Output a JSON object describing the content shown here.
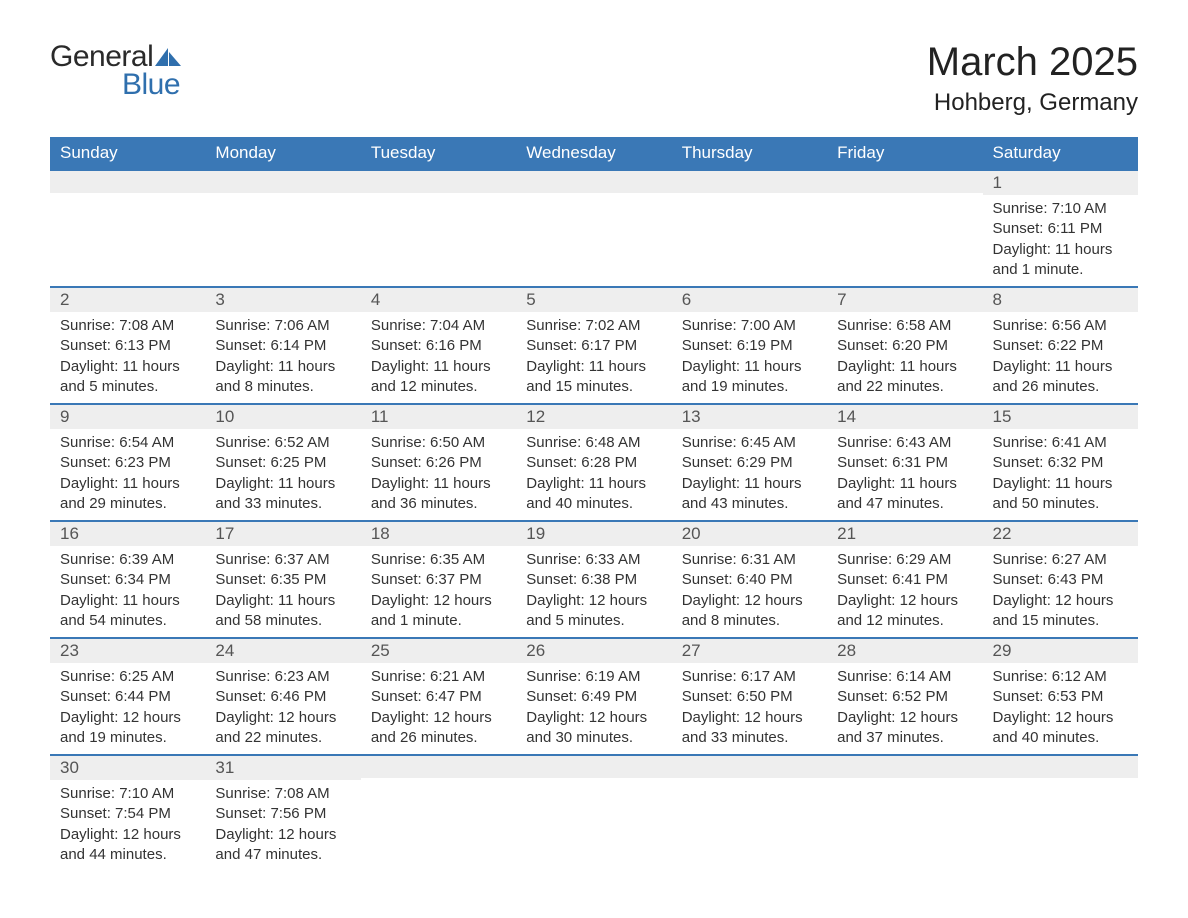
{
  "brand": {
    "word1": "General",
    "word2": "Blue",
    "accent_color": "#2f6fad"
  },
  "title": "March 2025",
  "location": "Hohberg, Germany",
  "colors": {
    "header_bg": "#3a78b6",
    "header_text": "#ffffff",
    "row_divider": "#3a78b6",
    "daynum_bg": "#eeeeee",
    "body_bg": "#ffffff",
    "text": "#333333"
  },
  "fonts": {
    "title_size_pt": 30,
    "location_size_pt": 18,
    "dow_size_pt": 13,
    "daynum_size_pt": 13,
    "body_size_pt": 11
  },
  "days_of_week": [
    "Sunday",
    "Monday",
    "Tuesday",
    "Wednesday",
    "Thursday",
    "Friday",
    "Saturday"
  ],
  "weeks": [
    [
      {
        "num": "",
        "sunrise": "",
        "sunset": "",
        "daylight": ""
      },
      {
        "num": "",
        "sunrise": "",
        "sunset": "",
        "daylight": ""
      },
      {
        "num": "",
        "sunrise": "",
        "sunset": "",
        "daylight": ""
      },
      {
        "num": "",
        "sunrise": "",
        "sunset": "",
        "daylight": ""
      },
      {
        "num": "",
        "sunrise": "",
        "sunset": "",
        "daylight": ""
      },
      {
        "num": "",
        "sunrise": "",
        "sunset": "",
        "daylight": ""
      },
      {
        "num": "1",
        "sunrise": "Sunrise: 7:10 AM",
        "sunset": "Sunset: 6:11 PM",
        "daylight": "Daylight: 11 hours and 1 minute."
      }
    ],
    [
      {
        "num": "2",
        "sunrise": "Sunrise: 7:08 AM",
        "sunset": "Sunset: 6:13 PM",
        "daylight": "Daylight: 11 hours and 5 minutes."
      },
      {
        "num": "3",
        "sunrise": "Sunrise: 7:06 AM",
        "sunset": "Sunset: 6:14 PM",
        "daylight": "Daylight: 11 hours and 8 minutes."
      },
      {
        "num": "4",
        "sunrise": "Sunrise: 7:04 AM",
        "sunset": "Sunset: 6:16 PM",
        "daylight": "Daylight: 11 hours and 12 minutes."
      },
      {
        "num": "5",
        "sunrise": "Sunrise: 7:02 AM",
        "sunset": "Sunset: 6:17 PM",
        "daylight": "Daylight: 11 hours and 15 minutes."
      },
      {
        "num": "6",
        "sunrise": "Sunrise: 7:00 AM",
        "sunset": "Sunset: 6:19 PM",
        "daylight": "Daylight: 11 hours and 19 minutes."
      },
      {
        "num": "7",
        "sunrise": "Sunrise: 6:58 AM",
        "sunset": "Sunset: 6:20 PM",
        "daylight": "Daylight: 11 hours and 22 minutes."
      },
      {
        "num": "8",
        "sunrise": "Sunrise: 6:56 AM",
        "sunset": "Sunset: 6:22 PM",
        "daylight": "Daylight: 11 hours and 26 minutes."
      }
    ],
    [
      {
        "num": "9",
        "sunrise": "Sunrise: 6:54 AM",
        "sunset": "Sunset: 6:23 PM",
        "daylight": "Daylight: 11 hours and 29 minutes."
      },
      {
        "num": "10",
        "sunrise": "Sunrise: 6:52 AM",
        "sunset": "Sunset: 6:25 PM",
        "daylight": "Daylight: 11 hours and 33 minutes."
      },
      {
        "num": "11",
        "sunrise": "Sunrise: 6:50 AM",
        "sunset": "Sunset: 6:26 PM",
        "daylight": "Daylight: 11 hours and 36 minutes."
      },
      {
        "num": "12",
        "sunrise": "Sunrise: 6:48 AM",
        "sunset": "Sunset: 6:28 PM",
        "daylight": "Daylight: 11 hours and 40 minutes."
      },
      {
        "num": "13",
        "sunrise": "Sunrise: 6:45 AM",
        "sunset": "Sunset: 6:29 PM",
        "daylight": "Daylight: 11 hours and 43 minutes."
      },
      {
        "num": "14",
        "sunrise": "Sunrise: 6:43 AM",
        "sunset": "Sunset: 6:31 PM",
        "daylight": "Daylight: 11 hours and 47 minutes."
      },
      {
        "num": "15",
        "sunrise": "Sunrise: 6:41 AM",
        "sunset": "Sunset: 6:32 PM",
        "daylight": "Daylight: 11 hours and 50 minutes."
      }
    ],
    [
      {
        "num": "16",
        "sunrise": "Sunrise: 6:39 AM",
        "sunset": "Sunset: 6:34 PM",
        "daylight": "Daylight: 11 hours and 54 minutes."
      },
      {
        "num": "17",
        "sunrise": "Sunrise: 6:37 AM",
        "sunset": "Sunset: 6:35 PM",
        "daylight": "Daylight: 11 hours and 58 minutes."
      },
      {
        "num": "18",
        "sunrise": "Sunrise: 6:35 AM",
        "sunset": "Sunset: 6:37 PM",
        "daylight": "Daylight: 12 hours and 1 minute."
      },
      {
        "num": "19",
        "sunrise": "Sunrise: 6:33 AM",
        "sunset": "Sunset: 6:38 PM",
        "daylight": "Daylight: 12 hours and 5 minutes."
      },
      {
        "num": "20",
        "sunrise": "Sunrise: 6:31 AM",
        "sunset": "Sunset: 6:40 PM",
        "daylight": "Daylight: 12 hours and 8 minutes."
      },
      {
        "num": "21",
        "sunrise": "Sunrise: 6:29 AM",
        "sunset": "Sunset: 6:41 PM",
        "daylight": "Daylight: 12 hours and 12 minutes."
      },
      {
        "num": "22",
        "sunrise": "Sunrise: 6:27 AM",
        "sunset": "Sunset: 6:43 PM",
        "daylight": "Daylight: 12 hours and 15 minutes."
      }
    ],
    [
      {
        "num": "23",
        "sunrise": "Sunrise: 6:25 AM",
        "sunset": "Sunset: 6:44 PM",
        "daylight": "Daylight: 12 hours and 19 minutes."
      },
      {
        "num": "24",
        "sunrise": "Sunrise: 6:23 AM",
        "sunset": "Sunset: 6:46 PM",
        "daylight": "Daylight: 12 hours and 22 minutes."
      },
      {
        "num": "25",
        "sunrise": "Sunrise: 6:21 AM",
        "sunset": "Sunset: 6:47 PM",
        "daylight": "Daylight: 12 hours and 26 minutes."
      },
      {
        "num": "26",
        "sunrise": "Sunrise: 6:19 AM",
        "sunset": "Sunset: 6:49 PM",
        "daylight": "Daylight: 12 hours and 30 minutes."
      },
      {
        "num": "27",
        "sunrise": "Sunrise: 6:17 AM",
        "sunset": "Sunset: 6:50 PM",
        "daylight": "Daylight: 12 hours and 33 minutes."
      },
      {
        "num": "28",
        "sunrise": "Sunrise: 6:14 AM",
        "sunset": "Sunset: 6:52 PM",
        "daylight": "Daylight: 12 hours and 37 minutes."
      },
      {
        "num": "29",
        "sunrise": "Sunrise: 6:12 AM",
        "sunset": "Sunset: 6:53 PM",
        "daylight": "Daylight: 12 hours and 40 minutes."
      }
    ],
    [
      {
        "num": "30",
        "sunrise": "Sunrise: 7:10 AM",
        "sunset": "Sunset: 7:54 PM",
        "daylight": "Daylight: 12 hours and 44 minutes."
      },
      {
        "num": "31",
        "sunrise": "Sunrise: 7:08 AM",
        "sunset": "Sunset: 7:56 PM",
        "daylight": "Daylight: 12 hours and 47 minutes."
      },
      {
        "num": "",
        "sunrise": "",
        "sunset": "",
        "daylight": ""
      },
      {
        "num": "",
        "sunrise": "",
        "sunset": "",
        "daylight": ""
      },
      {
        "num": "",
        "sunrise": "",
        "sunset": "",
        "daylight": ""
      },
      {
        "num": "",
        "sunrise": "",
        "sunset": "",
        "daylight": ""
      },
      {
        "num": "",
        "sunrise": "",
        "sunset": "",
        "daylight": ""
      }
    ]
  ]
}
